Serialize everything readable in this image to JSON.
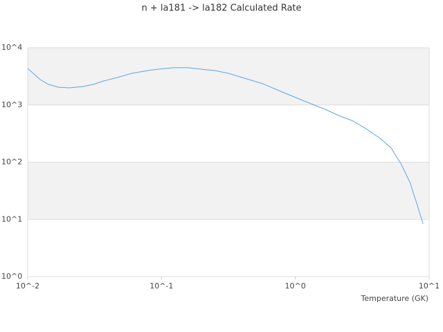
{
  "chart_data": {
    "type": "line",
    "title": "n + la181 -> la182 Calculated Rate",
    "x_label": "Temperature (GK)",
    "log_x": true,
    "log_y": true,
    "grid": true,
    "xlim": [
      0.01,
      10
    ],
    "ylim": [
      1,
      10000
    ],
    "xticks": [
      {
        "value": 0.01,
        "label": "10^-2"
      },
      {
        "value": 0.1,
        "label": "10^-1"
      },
      {
        "value": 1,
        "label": "10^0"
      },
      {
        "value": 10,
        "label": "10^1"
      }
    ],
    "yticks": [
      {
        "value": 1,
        "label": "10^0"
      },
      {
        "value": 10,
        "label": "10^1"
      },
      {
        "value": 100,
        "label": "10^2"
      },
      {
        "value": 1000,
        "label": "10^3"
      },
      {
        "value": 10000,
        "label": "10^4"
      }
    ],
    "series": [
      {
        "color": "#5aa5e6",
        "x": [
          0.01,
          0.0124,
          0.0143,
          0.017,
          0.0204,
          0.0259,
          0.031,
          0.037,
          0.047,
          0.06,
          0.085,
          0.122,
          0.158,
          0.197,
          0.25,
          0.316,
          0.4,
          0.57,
          0.82,
          1.17,
          1.67,
          2.11,
          2.7,
          3.37,
          4.3,
          5.2,
          6.2,
          7.2,
          8.1,
          9.0
        ],
        "values": [
          4340,
          2780,
          2290,
          2040,
          1990,
          2100,
          2290,
          2630,
          3020,
          3570,
          4110,
          4470,
          4470,
          4220,
          3990,
          3570,
          3020,
          2350,
          1640,
          1170,
          840,
          654,
          524,
          385,
          261,
          177,
          91,
          44,
          18.6,
          8.3
        ]
      }
    ]
  }
}
